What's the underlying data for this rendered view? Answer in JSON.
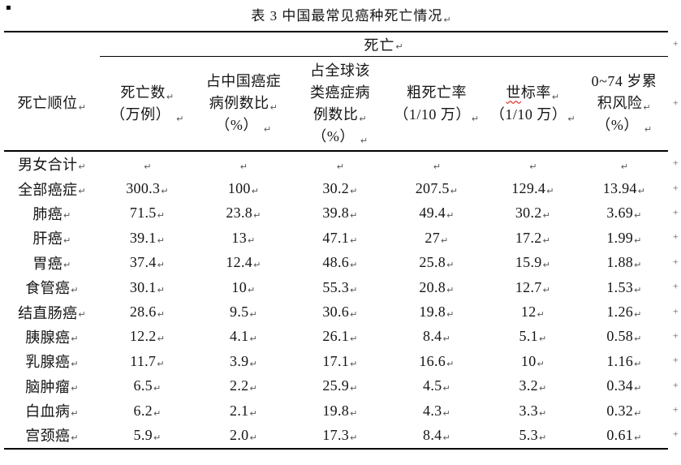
{
  "marks": {
    "bullet": "▪",
    "pilcrow": "↵",
    "row_end": "+"
  },
  "page": {
    "title": "表 3 中国最常见癌种死亡情况"
  },
  "table": {
    "span_header": "死亡",
    "header": {
      "cols": [
        {
          "name": "death-rank",
          "lines": [
            {
              "t": "死亡顺位",
              "pm": true
            }
          ]
        },
        {
          "name": "deaths-10k",
          "lines": [
            {
              "t": "死亡数",
              "pm": true
            },
            {
              "t": "（万例）",
              "sp": true,
              "pm": true
            }
          ]
        },
        {
          "name": "pct-china-cases",
          "lines": [
            {
              "t": "占中国癌症"
            },
            {
              "t": "病例数比",
              "pm": true
            },
            {
              "t": "（%）",
              "sp": true,
              "pm": true
            }
          ]
        },
        {
          "name": "pct-global-cases",
          "lines": [
            {
              "t": "占全球该"
            },
            {
              "t": "类癌症病"
            },
            {
              "t": "例数比",
              "pm": true
            },
            {
              "t": "（%）",
              "sp": true,
              "pm": true
            }
          ]
        },
        {
          "name": "crude-rate",
          "lines": [
            {
              "t": "粗死亡率"
            },
            {
              "t": "（1/10 万）",
              "pm": true
            }
          ]
        },
        {
          "name": "asr-world",
          "lines": [
            {
              "sq": "世",
              "t": "标率",
              "pm": true
            },
            {
              "t": "（1/10 万）",
              "pm": true
            }
          ]
        },
        {
          "name": "cumulative-risk",
          "lines": [
            {
              "t": "0~74 岁累"
            },
            {
              "t": "积风险",
              "pm": true
            },
            {
              "t": "（%）",
              "sp": true,
              "pm": true
            }
          ]
        }
      ]
    },
    "rows": [
      {
        "name": "男女合计",
        "values": [
          "",
          "",
          "",
          "",
          "",
          ""
        ]
      },
      {
        "name": "全部癌症",
        "values": [
          "300.3",
          "100",
          "30.2",
          "207.5",
          "129.4",
          "13.94"
        ]
      },
      {
        "name": "肺癌",
        "values": [
          "71.5",
          "23.8",
          "39.8",
          "49.4",
          "30.2",
          "3.69"
        ]
      },
      {
        "name": "肝癌",
        "values": [
          "39.1",
          "13",
          "47.1",
          "27",
          "17.2",
          "1.99"
        ]
      },
      {
        "name": "胃癌",
        "values": [
          "37.4",
          "12.4",
          "48.6",
          "25.8",
          "15.9",
          "1.88"
        ]
      },
      {
        "name": "食管癌",
        "values": [
          "30.1",
          "10",
          "55.3",
          "20.8",
          "12.7",
          "1.53"
        ]
      },
      {
        "name": "结直肠癌",
        "values": [
          "28.6",
          "9.5",
          "30.6",
          "19.8",
          "12",
          "1.26"
        ]
      },
      {
        "name": "胰腺癌",
        "values": [
          "12.2",
          "4.1",
          "26.1",
          "8.4",
          "5.1",
          "0.58"
        ]
      },
      {
        "name": "乳腺癌",
        "values": [
          "11.7",
          "3.9",
          "17.1",
          "16.6",
          "10",
          "1.16"
        ]
      },
      {
        "name": "脑肿瘤",
        "values": [
          "6.5",
          "2.2",
          "25.9",
          "4.5",
          "3.2",
          "0.34"
        ]
      },
      {
        "name": "白血病",
        "values": [
          "6.2",
          "2.1",
          "19.8",
          "4.3",
          "3.3",
          "0.32"
        ]
      },
      {
        "name": "宫颈癌",
        "values": [
          "5.9",
          "2.0",
          "17.3",
          "8.4",
          "5.3",
          "0.61"
        ]
      }
    ]
  }
}
